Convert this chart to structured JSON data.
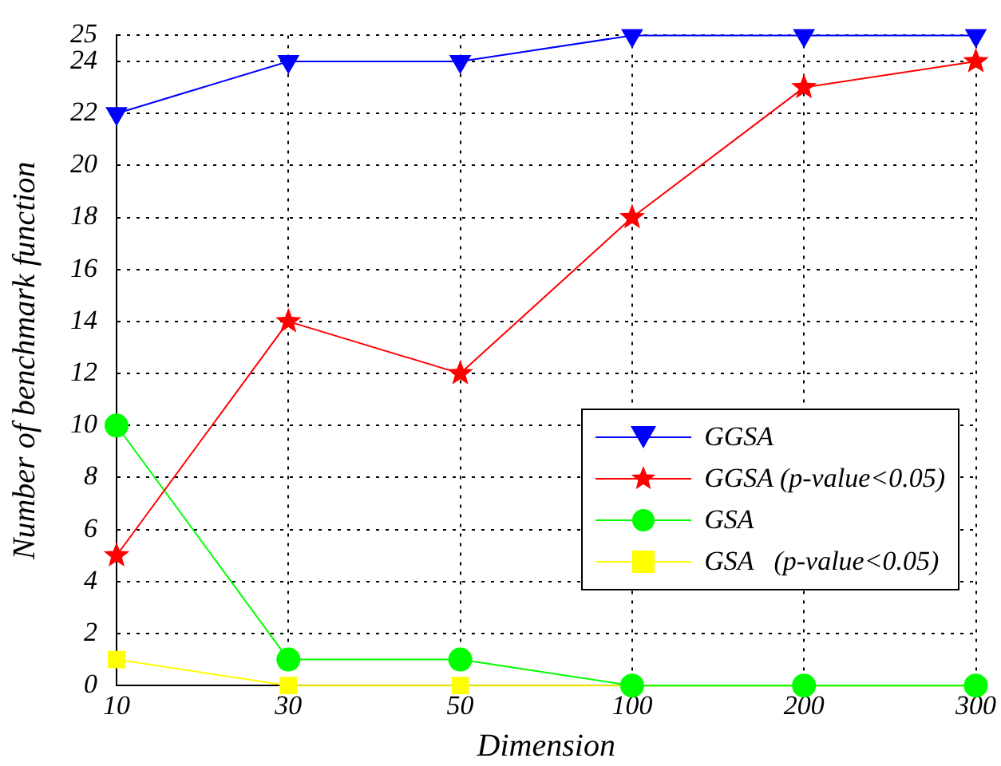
{
  "chart_data": {
    "type": "line",
    "xlabel": "Dimension",
    "ylabel": "Number of benchmark function",
    "categories": [
      "10",
      "30",
      "50",
      "100",
      "200",
      "300"
    ],
    "ylim": [
      0,
      25
    ],
    "yticks": [
      0,
      2,
      4,
      6,
      8,
      10,
      12,
      14,
      16,
      18,
      20,
      22,
      24,
      25
    ],
    "grid": true,
    "legend": "right",
    "line_style": "solid",
    "series": [
      {
        "name": "GGSA",
        "color": "#0000ff",
        "marker": "triangle",
        "values": [
          22,
          24,
          24,
          25,
          25,
          25
        ]
      },
      {
        "name": "GGSA (p-value<0.05)",
        "color": "#ff0000",
        "marker": "star",
        "values": [
          5,
          14,
          12,
          18,
          23,
          24
        ]
      },
      {
        "name": "GSA",
        "color": "#00ff00",
        "marker": "circle",
        "values": [
          10,
          1,
          1,
          0,
          0,
          0
        ]
      },
      {
        "name": "GSA   (p-value<0.05)",
        "color": "#ffff00",
        "marker": "square",
        "values": [
          1,
          0,
          0,
          0,
          0,
          0
        ]
      }
    ]
  }
}
